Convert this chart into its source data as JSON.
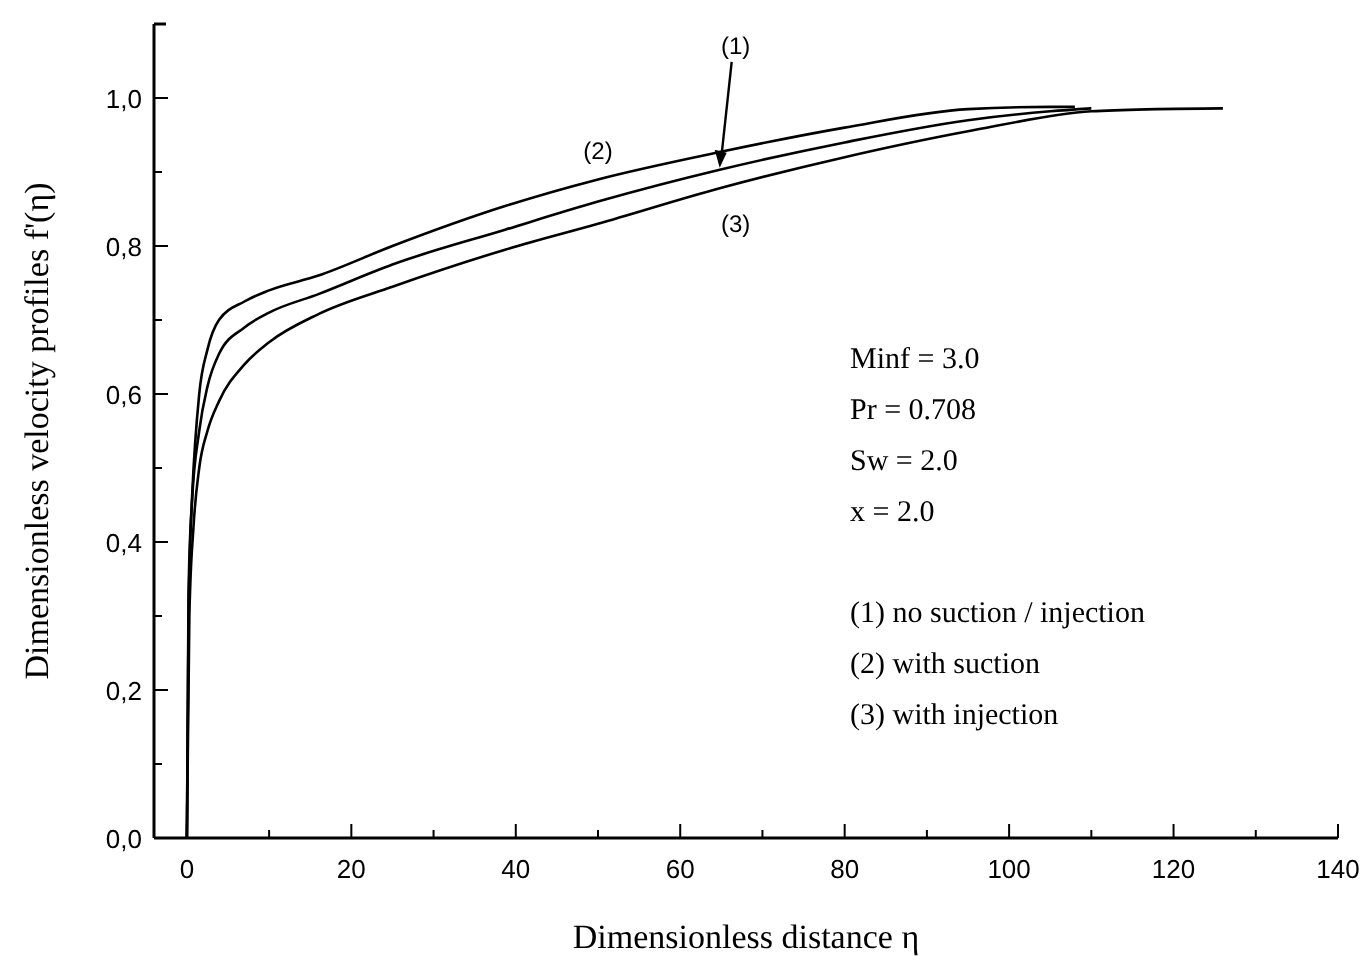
{
  "chart_data": {
    "type": "line",
    "xlabel": "Dimensionless distance η",
    "ylabel": "Dimensionless velocity profiles f'(η)",
    "xlim": [
      -4,
      140
    ],
    "xticks": [
      0,
      {
        "value": 10,
        "label": null
      },
      20,
      {
        "value": 30,
        "label": null
      },
      40,
      {
        "value": 50,
        "label": null
      },
      60,
      {
        "value": 70,
        "label": null
      },
      80,
      {
        "value": 90,
        "label": null
      },
      100,
      {
        "value": 110,
        "label": null
      },
      120,
      {
        "value": 130,
        "label": null
      },
      140
    ],
    "ylim": [
      0,
      1.1
    ],
    "yticks": [
      {
        "value": 0,
        "label": "0,0"
      },
      {
        "value": 0.1,
        "label": null
      },
      {
        "value": 0.2,
        "label": "0,2"
      },
      {
        "value": 0.3,
        "label": null
      },
      {
        "value": 0.4,
        "label": "0,4"
      },
      {
        "value": 0.5,
        "label": null
      },
      {
        "value": 0.6,
        "label": "0,6"
      },
      {
        "value": 0.7,
        "label": null
      },
      {
        "value": 0.8,
        "label": "0,8"
      },
      {
        "value": 0.9,
        "label": null
      },
      {
        "value": 1.0,
        "label": "1,0"
      }
    ],
    "grid": false,
    "marker": "none",
    "line_style": "solid",
    "series": [
      {
        "name": "(1)",
        "color": "#000000",
        "x": [
          0,
          0.2,
          0.6,
          1.5,
          2.5,
          3.9,
          7,
          10,
          16,
          25,
          38.7,
          50,
          64.8,
          80,
          95,
          105,
          110
        ],
        "values": [
          0,
          0.3,
          0.45,
          0.55,
          0.61,
          0.654,
          0.69,
          0.71,
          0.735,
          0.775,
          0.822,
          0.86,
          0.903,
          0.94,
          0.97,
          0.982,
          0.986
        ]
      },
      {
        "name": "(2)",
        "color": "#000000",
        "x": [
          0,
          0.2,
          0.65,
          1.5,
          2.5,
          3.9,
          7,
          10,
          16,
          25,
          38.7,
          50,
          64.8,
          80,
          95,
          105,
          108
        ],
        "values": [
          0,
          0.33,
          0.465,
          0.6,
          0.66,
          0.7,
          0.725,
          0.74,
          0.76,
          0.8,
          0.854,
          0.89,
          0.927,
          0.96,
          0.985,
          0.988,
          0.988
        ]
      },
      {
        "name": "(3)",
        "color": "#000000",
        "x": [
          0,
          0.3,
          0.8,
          1.5,
          2.5,
          3.9,
          7,
          10,
          16,
          25,
          38.7,
          50,
          64.8,
          80,
          95,
          110,
          118,
          126
        ],
        "values": [
          0,
          0.3,
          0.42,
          0.5,
          0.55,
          0.59,
          0.64,
          0.67,
          0.708,
          0.745,
          0.795,
          0.83,
          0.878,
          0.92,
          0.955,
          0.982,
          0.985,
          0.986
        ]
      }
    ],
    "annotations": [
      "Minf = 3.0",
      "Pr = 0.708",
      "Sw = 2.0",
      "x = 2.0",
      "(1) no suction / injection",
      "(2) with suction",
      "(3) with injection"
    ]
  }
}
